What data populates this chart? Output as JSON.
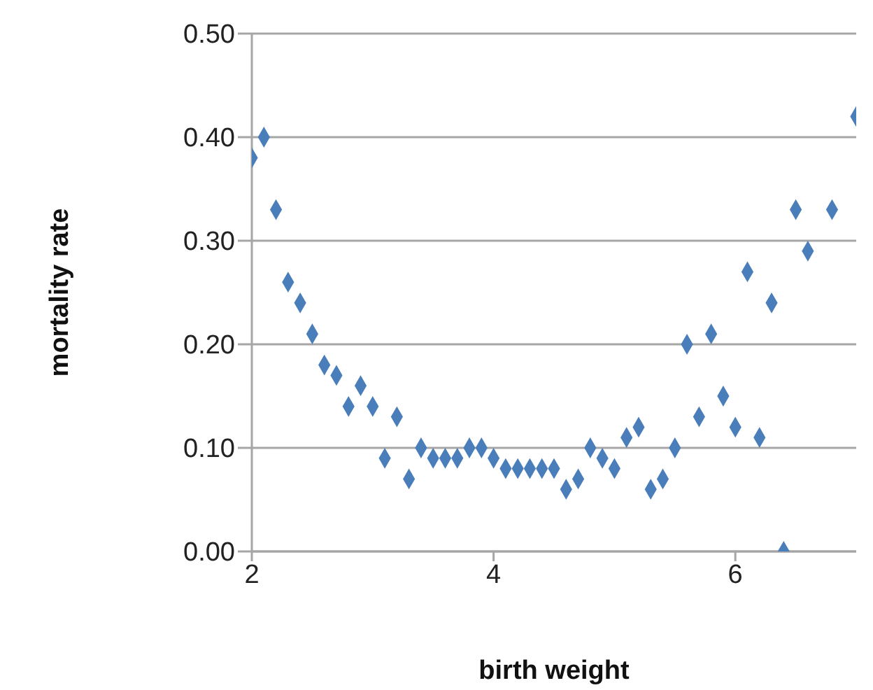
{
  "chart_data": {
    "type": "scatter",
    "xlabel": "birth weight",
    "ylabel": "mortality rate",
    "x": [
      2.0,
      2.1,
      2.2,
      2.3,
      2.4,
      2.5,
      2.6,
      2.7,
      2.8,
      2.9,
      3.0,
      3.1,
      3.2,
      3.3,
      3.4,
      3.5,
      3.6,
      3.7,
      3.8,
      3.9,
      4.0,
      4.1,
      4.2,
      4.3,
      4.4,
      4.5,
      4.6,
      4.7,
      4.8,
      4.9,
      5.0,
      5.1,
      5.2,
      5.3,
      5.4,
      5.5,
      5.6,
      5.7,
      5.8,
      5.9,
      6.0,
      6.1,
      6.2,
      6.3,
      6.4,
      6.5,
      6.6,
      6.8,
      7.0
    ],
    "series": [
      {
        "color": "#4a7ebb",
        "values": [
          0.38,
          0.4,
          0.33,
          0.26,
          0.24,
          0.21,
          0.18,
          0.17,
          0.14,
          0.16,
          0.14,
          0.09,
          0.13,
          0.07,
          0.1,
          0.09,
          0.09,
          0.09,
          0.1,
          0.1,
          0.09,
          0.08,
          0.08,
          0.08,
          0.08,
          0.08,
          0.06,
          0.07,
          0.1,
          0.09,
          0.08,
          0.11,
          0.12,
          0.06,
          0.07,
          0.1,
          0.2,
          0.13,
          0.21,
          0.15,
          0.12,
          0.27,
          0.11,
          0.24,
          0.0,
          0.33,
          0.29,
          0.33,
          0.42
        ]
      }
    ],
    "xlim": [
      2,
      7
    ],
    "xticks": [
      2,
      4,
      6
    ],
    "ylim": [
      0,
      0.5
    ],
    "yticks": [
      {
        "value": 0,
        "label": "0.00"
      },
      {
        "value": 0.1,
        "label": "0.10"
      },
      {
        "value": 0.2,
        "label": "0.20"
      },
      {
        "value": 0.3,
        "label": "0.30"
      },
      {
        "value": 0.4,
        "label": "0.40"
      },
      {
        "value": 0.5,
        "label": "0.50"
      }
    ],
    "grid": "y",
    "marker": "diamond"
  }
}
